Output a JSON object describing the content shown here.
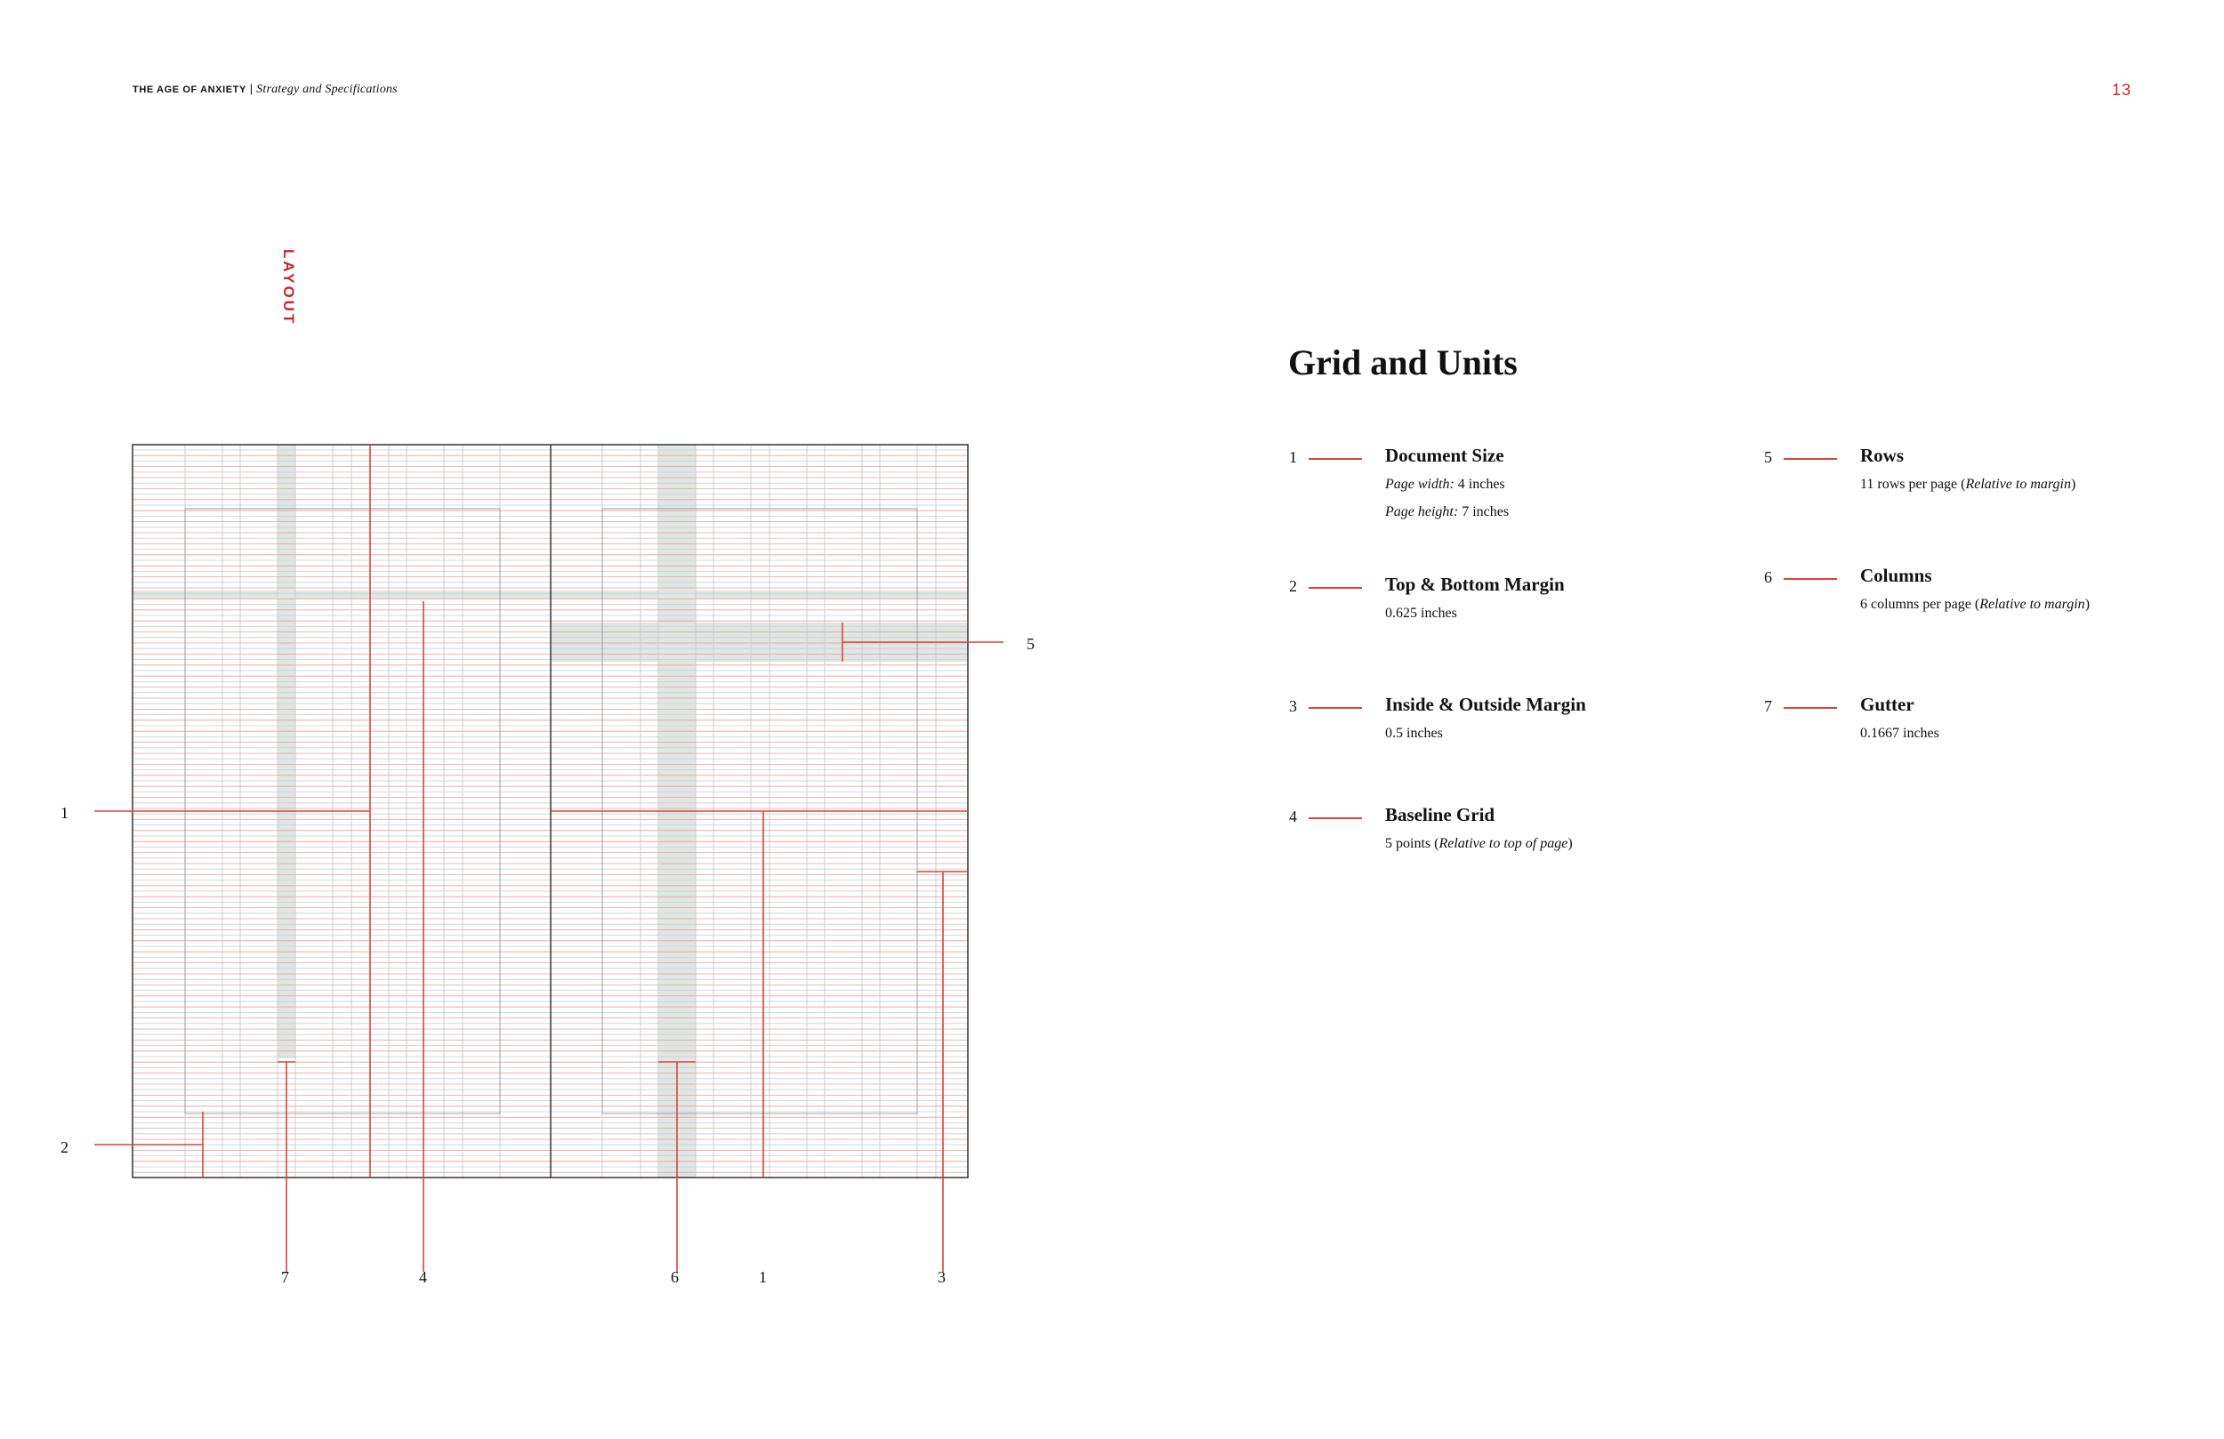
{
  "header": {
    "publication": "THE AGE OF ANXIETY",
    "separator": " | ",
    "section_subtitle": "Strategy and Specifications",
    "page_number": "13"
  },
  "section_label": "LAYOUT",
  "title": "Grid and Units",
  "colors": {
    "accent_red": "#c8262b",
    "grid_red": "#e8a0a0",
    "grid_gray": "#c9cfcf",
    "highlight": "#dfe6e3"
  },
  "grid_spec": {
    "columns_per_page": 6,
    "rows_per_page": 11,
    "pages": 2
  },
  "diagram_callouts": {
    "left_1": "1",
    "left_2": "2",
    "right_5": "5",
    "bottom_7": "7",
    "bottom_4": "4",
    "bottom_6": "6",
    "bottom_1": "1",
    "bottom_3": "3"
  },
  "specs": [
    {
      "num": "1",
      "name": "Document Size",
      "lines": [
        {
          "label": "Page width:",
          "value": " 4 inches"
        },
        {
          "label": "Page height:",
          "value": " 7 inches"
        }
      ]
    },
    {
      "num": "2",
      "name": "Top & Bottom Margin",
      "lines": [
        {
          "label": "",
          "value": "0.625 inches"
        }
      ]
    },
    {
      "num": "3",
      "name": "Inside & Outside Margin",
      "lines": [
        {
          "label": "",
          "value": "0.5 inches"
        }
      ]
    },
    {
      "num": "4",
      "name": "Baseline Grid",
      "lines": [
        {
          "label": "",
          "value": "5 points (",
          "italic": "Relative to top of page",
          "tail": ")"
        }
      ]
    },
    {
      "num": "5",
      "name": "Rows",
      "lines": [
        {
          "label": "",
          "value": "11 rows per page (",
          "italic": "Relative to margin",
          "tail": ")"
        }
      ]
    },
    {
      "num": "6",
      "name": "Columns",
      "lines": [
        {
          "label": "",
          "value": "6 columns per page (",
          "italic": "Relative to margin",
          "tail": ")"
        }
      ]
    },
    {
      "num": "7",
      "name": "Gutter",
      "lines": [
        {
          "label": "",
          "value": "0.1667 inches"
        }
      ]
    }
  ]
}
